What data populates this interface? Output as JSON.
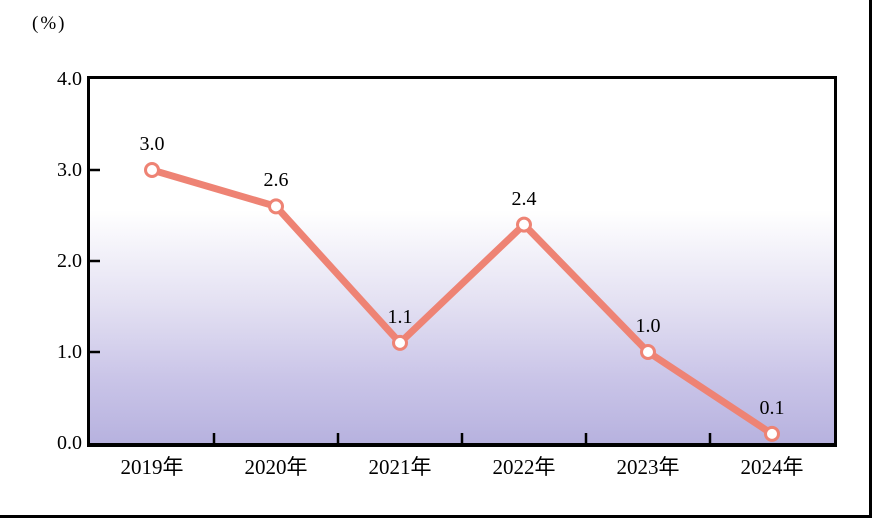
{
  "figure": {
    "unit_label": "(%)"
  },
  "chart_data": {
    "type": "line",
    "categories": [
      "2019年",
      "2020年",
      "2021年",
      "2022年",
      "2023年",
      "2024年"
    ],
    "values": [
      3.0,
      2.6,
      1.1,
      2.4,
      1.0,
      0.1
    ],
    "value_labels": [
      "3.0",
      "2.6",
      "1.1",
      "2.4",
      "1.0",
      "0.1"
    ],
    "title": "",
    "xlabel": "",
    "ylabel": "(%)",
    "ylim": [
      0.0,
      4.0
    ],
    "y_tick_values": [
      4.0,
      3.0,
      2.0,
      1.0,
      0.0
    ],
    "y_tick_labels": [
      "4.0",
      "3.0",
      "2.0",
      "1.0",
      "0.0"
    ],
    "grid": false,
    "legend_position": "none",
    "line_color": "#ee8374",
    "marker_fill": "#ffffff",
    "marker_stroke": "#ee8374",
    "axis_color": "#000000",
    "plot_bg_gradient_top": "#ffffff",
    "plot_bg_gradient_bottom": "#b7b2df"
  }
}
